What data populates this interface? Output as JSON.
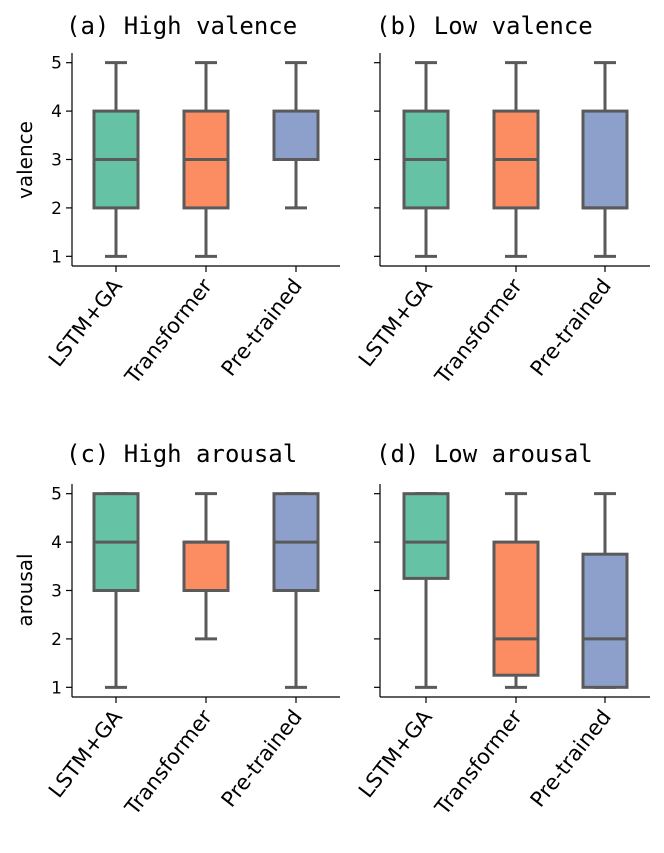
{
  "chart_data": [
    {
      "type": "box",
      "title": "(a) High valence",
      "ylabel": "valence",
      "ylim": [
        0.8,
        5.2
      ],
      "yticks": [
        1,
        2,
        3,
        4,
        5
      ],
      "categories": [
        "LSTM+GA",
        "Transformer",
        "Pre-trained"
      ],
      "colors": [
        "#66c2a5",
        "#fc8d62",
        "#8da0cb"
      ],
      "boxes": [
        {
          "whislo": 1,
          "q1": 2,
          "med": 3,
          "q3": 4,
          "whishi": 5
        },
        {
          "whislo": 1,
          "q1": 2,
          "med": 3,
          "q3": 4,
          "whishi": 5
        },
        {
          "whislo": 2,
          "q1": 3,
          "med": 3,
          "q3": 4,
          "whishi": 5
        }
      ]
    },
    {
      "type": "box",
      "title": "(b) Low valence",
      "ylabel": "",
      "ylim": [
        0.8,
        5.2
      ],
      "yticks": [
        1,
        2,
        3,
        4,
        5
      ],
      "categories": [
        "LSTM+GA",
        "Transformer",
        "Pre-trained"
      ],
      "colors": [
        "#66c2a5",
        "#fc8d62",
        "#8da0cb"
      ],
      "boxes": [
        {
          "whislo": 1,
          "q1": 2,
          "med": 3,
          "q3": 4,
          "whishi": 5
        },
        {
          "whislo": 1,
          "q1": 2,
          "med": 3,
          "q3": 4,
          "whishi": 5
        },
        {
          "whislo": 1,
          "q1": 2,
          "med": 2,
          "q3": 4,
          "whishi": 5
        }
      ]
    },
    {
      "type": "box",
      "title": "(c) High arousal",
      "ylabel": "arousal",
      "ylim": [
        0.8,
        5.2
      ],
      "yticks": [
        1,
        2,
        3,
        4,
        5
      ],
      "categories": [
        "LSTM+GA",
        "Transformer",
        "Pre-trained"
      ],
      "colors": [
        "#66c2a5",
        "#fc8d62",
        "#8da0cb"
      ],
      "boxes": [
        {
          "whislo": 1,
          "q1": 3,
          "med": 4,
          "q3": 5,
          "whishi": 5
        },
        {
          "whislo": 2,
          "q1": 3,
          "med": 4,
          "q3": 4,
          "whishi": 5
        },
        {
          "whislo": 1,
          "q1": 3,
          "med": 4,
          "q3": 5,
          "whishi": 5
        }
      ]
    },
    {
      "type": "box",
      "title": "(d) Low arousal",
      "ylabel": "",
      "ylim": [
        0.8,
        5.2
      ],
      "yticks": [
        1,
        2,
        3,
        4,
        5
      ],
      "categories": [
        "LSTM+GA",
        "Transformer",
        "Pre-trained"
      ],
      "colors": [
        "#66c2a5",
        "#fc8d62",
        "#8da0cb"
      ],
      "boxes": [
        {
          "whislo": 1,
          "q1": 3.25,
          "med": 4,
          "q3": 5,
          "whishi": 5
        },
        {
          "whislo": 1,
          "q1": 1.25,
          "med": 2,
          "q3": 4,
          "whishi": 5
        },
        {
          "whislo": 1,
          "q1": 1,
          "med": 2,
          "q3": 3.75,
          "whishi": 5
        }
      ]
    }
  ]
}
